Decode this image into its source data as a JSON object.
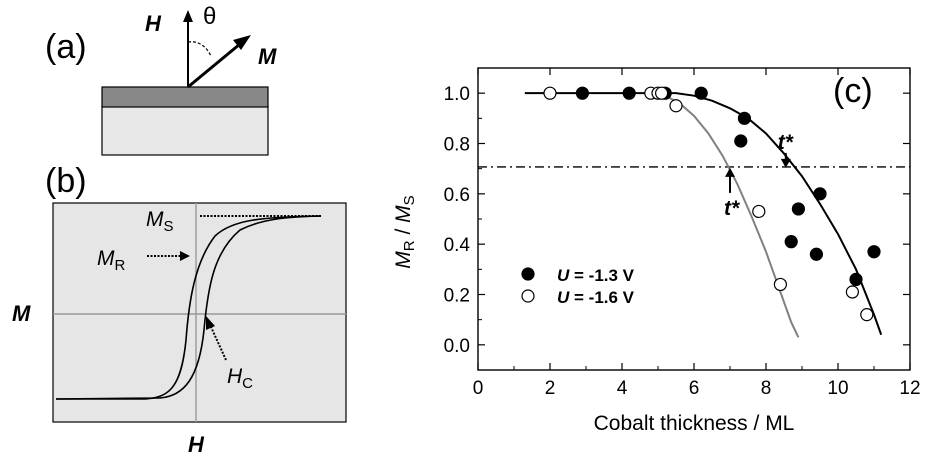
{
  "panel_a": {
    "label": "(a)",
    "field_label": "H",
    "angle_label": "θ",
    "moment_label": "M"
  },
  "panel_b": {
    "label": "(b)",
    "ms_label": "M",
    "ms_sub": "S",
    "mr_label": "M",
    "mr_sub": "R",
    "hc_label": "H",
    "hc_sub": "C",
    "y_label": "M",
    "x_label": "H"
  },
  "chart_data": {
    "type": "scatter",
    "panel_label": "(c)",
    "xlabel": "Cobalt thickness / ML",
    "ylabel_main": "M",
    "ylabel_main_sub": "R",
    "ylabel_sep": " / ",
    "ylabel_den": "M",
    "ylabel_den_sub": "S",
    "xlim": [
      0,
      12
    ],
    "ylim": [
      -0.1,
      1.1
    ],
    "xticks": [
      0,
      2,
      4,
      6,
      8,
      10,
      12
    ],
    "yticks": [
      0.0,
      0.2,
      0.4,
      0.6,
      0.8,
      1.0
    ],
    "ytick_labels": [
      "0.0",
      "0.2",
      "0.4",
      "0.6",
      "0.8",
      "1.0"
    ],
    "threshold_y": 0.707,
    "legend_placement": "bottom-left",
    "series": [
      {
        "name": "U = -1.3 V",
        "legend_var": "U",
        "legend_rest": " = -1.3 V",
        "marker": "filled-circle",
        "color": "#000000",
        "x": [
          2.9,
          4.2,
          5.2,
          6.2,
          7.4,
          7.3,
          8.9,
          8.7,
          9.5,
          9.4,
          10.5,
          11.0
        ],
        "y": [
          1.0,
          1.0,
          1.0,
          1.0,
          0.9,
          0.81,
          0.54,
          0.41,
          0.6,
          0.36,
          0.26,
          0.37
        ],
        "fit_x": [
          1.3,
          2,
          3,
          4,
          5,
          5.5,
          6,
          6.5,
          7,
          7.5,
          8,
          8.5,
          9,
          9.5,
          10,
          10.5,
          11,
          11.2
        ],
        "fit_y": [
          1.0,
          1.0,
          1.0,
          1.0,
          1.0,
          1.0,
          0.99,
          0.97,
          0.94,
          0.9,
          0.84,
          0.76,
          0.67,
          0.56,
          0.44,
          0.3,
          0.12,
          0.04
        ],
        "t_star_x": 8.55,
        "t_star_label": "t*"
      },
      {
        "name": "U = -1.6 V",
        "legend_var": "U",
        "legend_rest": " = -1.6 V",
        "marker": "open-circle",
        "color": "#808080",
        "x": [
          2.0,
          4.8,
          5.0,
          5.1,
          5.5,
          7.8,
          8.4,
          10.4,
          10.8
        ],
        "y": [
          1.0,
          1.0,
          1.0,
          1.0,
          0.95,
          0.53,
          0.24,
          0.21,
          0.12
        ],
        "fit_x": [
          4.8,
          5.2,
          5.6,
          6,
          6.4,
          6.8,
          7.2,
          7.6,
          8,
          8.4,
          8.7,
          8.9
        ],
        "fit_y": [
          1.0,
          0.99,
          0.96,
          0.91,
          0.84,
          0.75,
          0.64,
          0.51,
          0.37,
          0.21,
          0.09,
          0.03
        ],
        "t_star_x": 7.0,
        "t_star_label": "t*"
      }
    ]
  }
}
